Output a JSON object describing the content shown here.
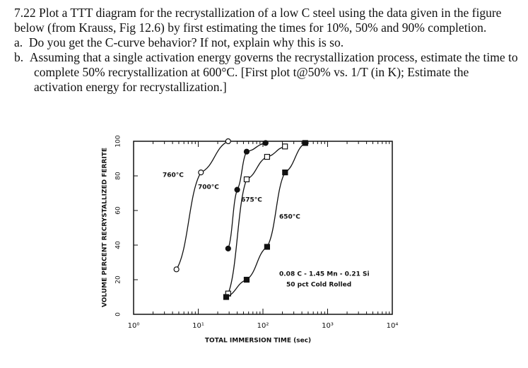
{
  "document": {
    "intro": "7.22 Plot a TTT diagram for the recrystallization of a low C steel using the data given in the figure below (from Krauss, Fig 12.6) by first estimating the times for 10%, 50% and 90% completion.",
    "items": [
      {
        "marker": "a.",
        "text": "Do you get the C-curve behavior? If not, explain why this is so."
      },
      {
        "marker": "b.",
        "text": "Assuming that a single activation energy governs the recrystallization process, estimate the time to complete 50% recrystallization at 600°C. [First plot t@50% vs. 1/T (in K); Estimate the activation energy for recrystallization.]"
      }
    ]
  },
  "chart_data": {
    "type": "line",
    "xlabel": "TOTAL IMMERSION TIME (sec)",
    "ylabel": "VOLUME PERCENT RECRYSTALLIZED FERRITE",
    "xscale": "log",
    "xlim": [
      1,
      10000
    ],
    "xticks": [
      {
        "value": 1,
        "label": "10⁰"
      },
      {
        "value": 10,
        "label": "10¹"
      },
      {
        "value": 100,
        "label": "10²"
      },
      {
        "value": 1000,
        "label": "10³"
      },
      {
        "value": 10000,
        "label": "10⁴"
      }
    ],
    "ylim": [
      0,
      100
    ],
    "yticks": [
      0,
      20,
      40,
      60,
      80,
      100
    ],
    "annotations": [
      "0.08 C - 1.45 Mn - 0.21 Si",
      "50 pct Cold Rolled"
    ],
    "series": [
      {
        "name": "760°C",
        "color": "#111",
        "marker": "open-circle",
        "x": [
          4.6,
          11,
          29
        ],
        "values": [
          26,
          82,
          100
        ]
      },
      {
        "name": "700°C",
        "color": "#111",
        "marker": "filled-circle",
        "x": [
          29,
          40,
          56,
          110
        ],
        "values": [
          38,
          72,
          94,
          99
        ]
      },
      {
        "name": "675°C",
        "color": "#111",
        "marker": "open-square",
        "x": [
          29,
          56,
          116,
          219
        ],
        "values": [
          12,
          78,
          91,
          97
        ]
      },
      {
        "name": "650°C",
        "color": "#111",
        "marker": "filled-square",
        "x": [
          27,
          56,
          116,
          220,
          450
        ],
        "values": [
          10,
          20,
          39,
          82,
          99
        ]
      }
    ]
  }
}
